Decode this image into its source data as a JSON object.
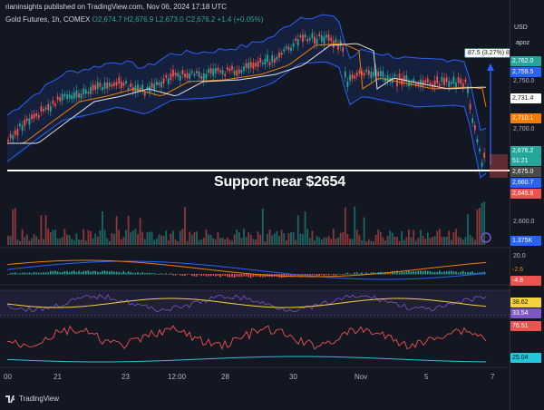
{
  "header": {
    "published": "rianinsights published on TradingView.com, Nov 06, 2024 17:18 UTC",
    "symbol": "Gold Futures, 1h, COMEX",
    "ohlc": {
      "o": "O2,674.7",
      "h": "H2,676.9",
      "l": "L2,673.0",
      "c": "C2,676.2",
      "chg": "+1.4 (+0.05%)"
    }
  },
  "axis": {
    "currency": "USD",
    "apoz": "apoz",
    "levels": [
      "2,762.0",
      "2,759.5",
      "2,750.0",
      "2,731.4",
      "2,710.1",
      "2,700.0",
      "2,676.2",
      "51:21",
      "2,675.0",
      "2,660.7",
      "2,645.6",
      "2,600.0"
    ],
    "volume_tag": "1.375K",
    "osc1": [
      "20.0",
      "-2.6",
      "-4.8"
    ],
    "osc2": [
      "38.62",
      "33.54"
    ],
    "osc3": "76.51",
    "osc4": "25.04"
  },
  "annotation": {
    "support_text": "Support near $2654",
    "measure_text": "87.5 (3.27%) 87"
  },
  "xaxis": [
    "00",
    "21",
    "23",
    "12:00",
    "28",
    "30",
    "Nov",
    "5",
    "7"
  ],
  "footer": {
    "brand": "TradingView"
  },
  "colors": {
    "bg": "#131722",
    "up": "#26a69a",
    "down": "#ef5350",
    "blue": "#2962ff",
    "orange": "#f57c00",
    "yellow": "#f5d33a",
    "purple": "#7e57c2"
  }
}
